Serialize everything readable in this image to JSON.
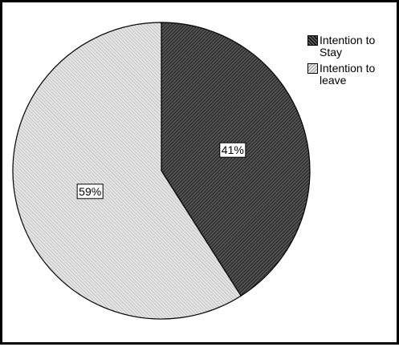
{
  "chart_data": {
    "type": "pie",
    "title": "",
    "categories": [
      "Intention to Stay",
      "Intention to leave"
    ],
    "values": [
      41,
      59
    ],
    "labels": [
      "41%",
      "59%"
    ],
    "start_angle_deg": 0,
    "direction": "clockwise",
    "legend_position": "top-right",
    "slice_patterns": [
      "dark-diagonal-hatch",
      "light-diagonal-hatch"
    ],
    "colors": {
      "stay": "#3a3a3a",
      "leave": "#d8d8d8",
      "border": "#000000"
    }
  },
  "legend": {
    "items": [
      {
        "label": "Intention to Stay"
      },
      {
        "label": "Intention to leave"
      }
    ]
  }
}
